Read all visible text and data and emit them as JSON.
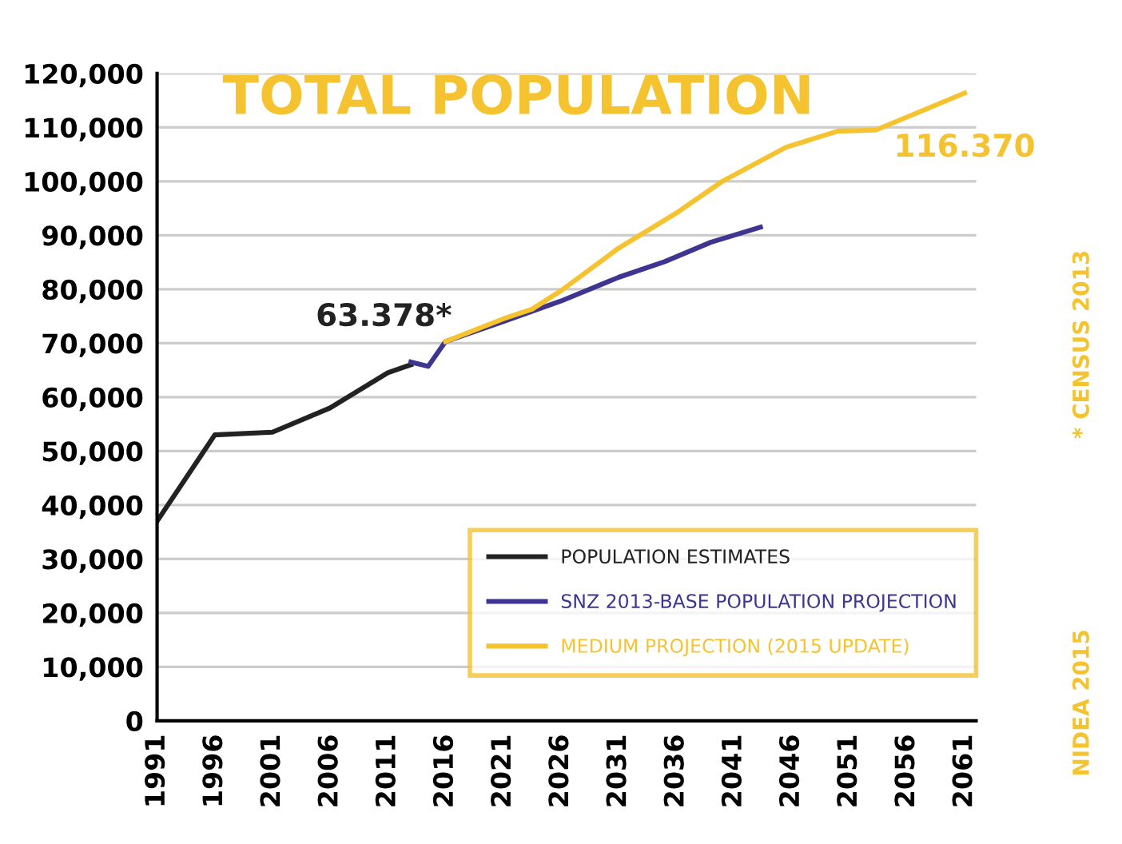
{
  "chart_data": {
    "type": "line",
    "title": "TOTAL POPULATION",
    "series": [
      {
        "name": "POPULATION ESTIMATES",
        "color": "#222222",
        "x": [
          1991,
          1996,
          2001,
          2006,
          2011,
          2013
        ],
        "values": [
          37000,
          53000,
          53500,
          58000,
          64500,
          66000
        ]
      },
      {
        "name": "SNZ 2013-BASE POPULATION PROJECTION",
        "color": "#3d3590",
        "x": [
          2013,
          2014.5,
          2016,
          2021,
          2026,
          2031,
          2035,
          2039,
          2043.3
        ],
        "values": [
          66500,
          65700,
          70300,
          74000,
          77800,
          82200,
          85100,
          88700,
          91500
        ]
      },
      {
        "name": "MEDIUM PROJECTION (2015 UPDATE)",
        "color": "#f5c330",
        "x": [
          2016,
          2021,
          2023.5,
          2026,
          2031,
          2036,
          2040,
          2045.5,
          2050,
          2053.3,
          2061
        ],
        "values": [
          70300,
          74500,
          76300,
          79700,
          87600,
          94100,
          100000,
          106300,
          109300,
          109500,
          116370
        ]
      }
    ],
    "xlim": [
      1991,
      2062
    ],
    "xticks": [
      1991,
      1996,
      2001,
      2006,
      2011,
      2016,
      2021,
      2026,
      2031,
      2036,
      2041,
      2046,
      2051,
      2056,
      2061
    ],
    "ylim": [
      0,
      120000
    ],
    "yticks": [
      {
        "value": 0,
        "label": "0"
      },
      {
        "value": 10000,
        "label": "10,000"
      },
      {
        "value": 20000,
        "label": "20,000"
      },
      {
        "value": 30000,
        "label": "30,000"
      },
      {
        "value": 40000,
        "label": "40,000"
      },
      {
        "value": 50000,
        "label": "50,000"
      },
      {
        "value": 60000,
        "label": "60,000"
      },
      {
        "value": 70000,
        "label": "70,000"
      },
      {
        "value": 80000,
        "label": "80,000"
      },
      {
        "value": 90000,
        "label": "90,000"
      },
      {
        "value": 100000,
        "label": "100,000"
      },
      {
        "value": 110000,
        "label": "110,000"
      },
      {
        "value": 120000,
        "label": "120,000"
      }
    ],
    "annotations": [
      "63.378*",
      {
        "text": "116.370",
        "x": 2061,
        "y": 116370
      },
      "* CENSUS 2013",
      "NIDEA 2015"
    ],
    "grid": "y",
    "legend": "bottom right",
    "marker": "none",
    "line_style": "solid"
  }
}
